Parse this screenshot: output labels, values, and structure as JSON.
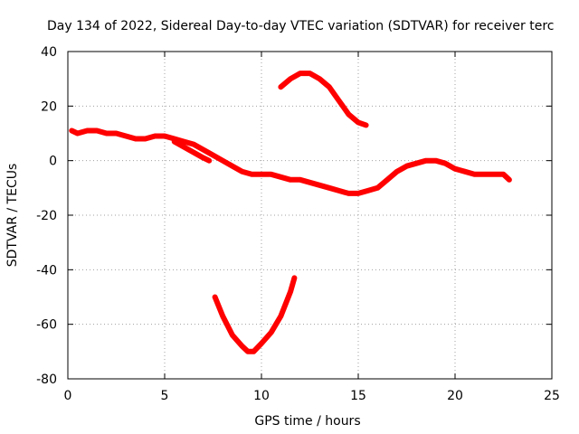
{
  "chart_data": {
    "type": "line",
    "title": "Day 134 of 2022, Sidereal Day-to-day VTEC variation (SDTVAR) for receiver terc",
    "xlabel": "GPS time / hours",
    "ylabel": "SDTVAR / TECUs",
    "xlim": [
      0,
      25
    ],
    "ylim": [
      -80,
      40
    ],
    "xticks": [
      "0",
      "5",
      "10",
      "15",
      "20",
      "25"
    ],
    "yticks": [
      "40",
      "20",
      "0",
      "-20",
      "-40",
      "-60",
      "-80"
    ],
    "grid": true,
    "color": "#ff0000",
    "series": [
      {
        "name": "main",
        "x": [
          0.2,
          0.5,
          1.0,
          1.5,
          2.0,
          2.5,
          3.0,
          3.5,
          4.0,
          4.5,
          5.0,
          5.5,
          6.0,
          6.5,
          7.0,
          7.5,
          8.0,
          8.5,
          9.0,
          9.5,
          10.0,
          10.5,
          11.0,
          11.5,
          12.0,
          12.5,
          13.0,
          13.5,
          14.0,
          14.5,
          15.0,
          15.5,
          16.0,
          16.5,
          17.0,
          17.5,
          18.0,
          18.5,
          19.0,
          19.5,
          20.0,
          20.5,
          21.0,
          21.5,
          22.0,
          22.5,
          22.8
        ],
        "y": [
          11,
          10,
          11,
          11,
          10,
          10,
          9,
          8,
          8,
          9,
          9,
          8,
          7,
          6,
          4,
          2,
          0,
          -2,
          -4,
          -5,
          -5,
          -5,
          -6,
          -7,
          -7,
          -8,
          -9,
          -10,
          -11,
          -12,
          -12,
          -11,
          -10,
          -7,
          -4,
          -2,
          -1,
          0,
          0,
          -1,
          -3,
          -4,
          -5,
          -5,
          -5,
          -5,
          -7
        ]
      },
      {
        "name": "upper-arc",
        "x": [
          11.0,
          11.5,
          12.0,
          12.5,
          13.0,
          13.5,
          14.0,
          14.5,
          15.0,
          15.4
        ],
        "y": [
          27,
          30,
          32,
          32,
          30,
          27,
          22,
          17,
          14,
          13
        ]
      },
      {
        "name": "lower-dip",
        "x": [
          7.6,
          8.0,
          8.5,
          9.0,
          9.3,
          9.6,
          10.0,
          10.5,
          11.0,
          11.5,
          11.7
        ],
        "y": [
          -50,
          -57,
          -64,
          -68,
          -70,
          -70,
          -67,
          -63,
          -57,
          -48,
          -43
        ]
      },
      {
        "name": "side-branch",
        "x": [
          5.5,
          6.0,
          6.5,
          7.0,
          7.3
        ],
        "y": [
          7,
          5,
          3,
          1,
          0
        ]
      }
    ]
  }
}
